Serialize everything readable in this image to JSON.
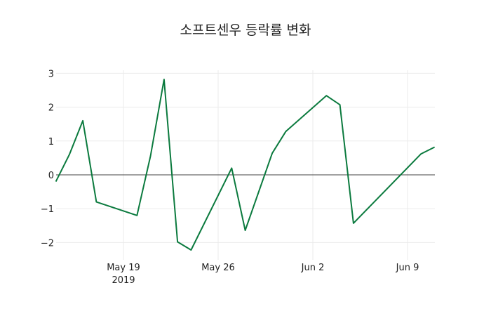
{
  "chart_data": {
    "type": "line",
    "title": "소프트센우 등락률 변화",
    "xlabel": "",
    "ylabel": "",
    "x": [
      "2019-05-14",
      "2019-05-15",
      "2019-05-16",
      "2019-05-17",
      "2019-05-20",
      "2019-05-21",
      "2019-05-22",
      "2019-05-23",
      "2019-05-24",
      "2019-05-27",
      "2019-05-28",
      "2019-05-30",
      "2019-05-31",
      "2019-06-03",
      "2019-06-04",
      "2019-06-05",
      "2019-06-10",
      "2019-06-11"
    ],
    "series": [
      {
        "name": "등락률",
        "color": "#0b7a3e",
        "values": [
          -0.2,
          0.6,
          1.6,
          -0.8,
          -1.2,
          0.56,
          2.82,
          -1.98,
          -2.22,
          0.2,
          -1.64,
          0.64,
          1.28,
          2.34,
          2.07,
          -1.43,
          0.62,
          0.82
        ]
      }
    ],
    "ylim": [
      -2.4,
      3.1
    ],
    "yticks": [
      "3",
      "2",
      "1",
      "0",
      "−1",
      "−2"
    ],
    "xticks": [
      {
        "label": "May 19",
        "sub": "2019",
        "date": "2019-05-19"
      },
      {
        "label": "May 26",
        "sub": "",
        "date": "2019-05-26"
      },
      {
        "label": "Jun 2",
        "sub": "",
        "date": "2019-06-02"
      },
      {
        "label": "Jun 9",
        "sub": "",
        "date": "2019-06-09"
      }
    ],
    "grid": true,
    "legend": false
  }
}
